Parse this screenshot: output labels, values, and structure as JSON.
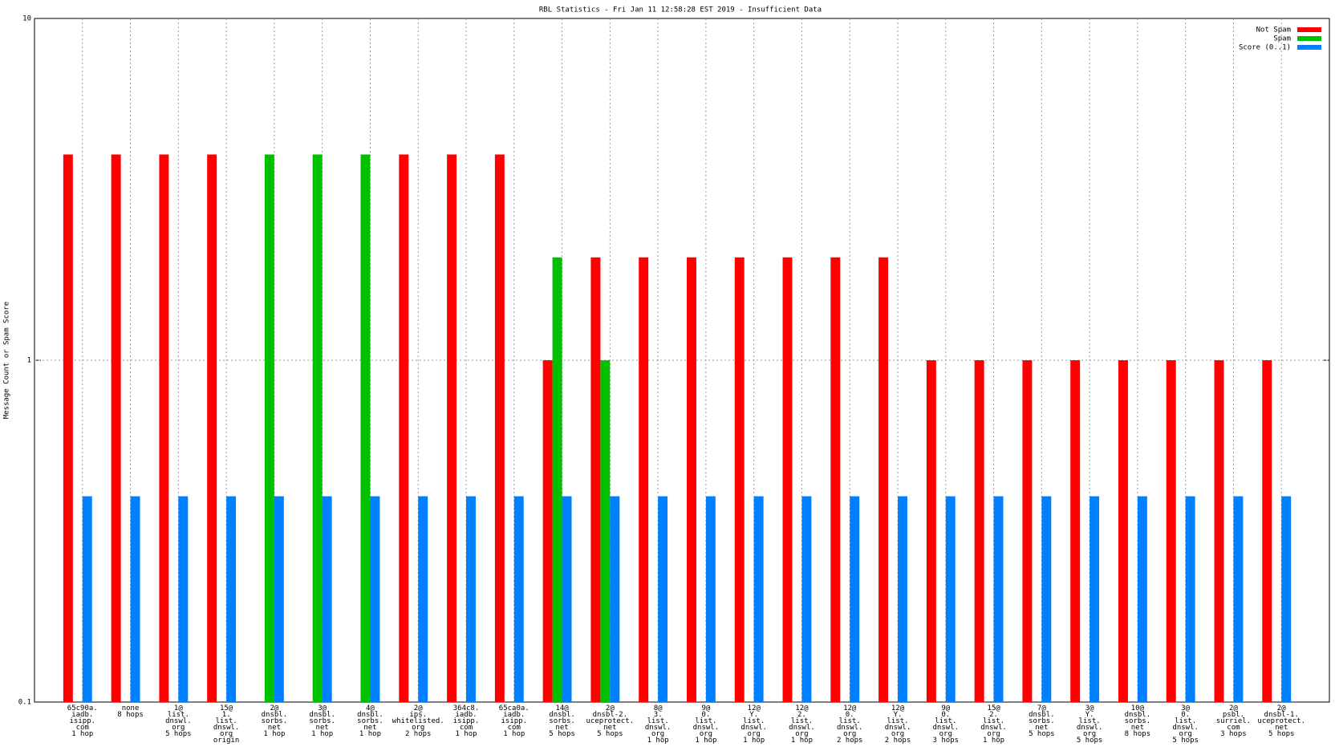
{
  "chart_data": {
    "type": "bar",
    "title": "RBL Statistics - Fri Jan 11 12:58:28 EST 2019 - Insufficient Data",
    "y_label": "Message Count or Spam Score",
    "log_scale_y": true,
    "grid": true,
    "legend_position": "top-right",
    "ylim": [
      0.1,
      10
    ],
    "yticks": [
      10,
      1,
      0.1
    ],
    "categories": [
      [
        "65c90a.",
        "iadb.",
        "isipp.",
        "com",
        "1 hop"
      ],
      [
        "none",
        "8 hops"
      ],
      [
        "1@",
        "list.",
        "dnswl.",
        "org",
        "5 hops"
      ],
      [
        "15@",
        "1.",
        "list.",
        "dnswl.",
        "org",
        "origin"
      ],
      [
        "2@",
        "dnsbl.",
        "sorbs.",
        "net",
        "1 hop"
      ],
      [
        "3@",
        "dnsbl.",
        "sorbs.",
        "net",
        "1 hop"
      ],
      [
        "4@",
        "dnsbl.",
        "sorbs.",
        "net",
        "1 hop"
      ],
      [
        "2@",
        "ips.",
        "whitelisted.",
        "org",
        "2 hops"
      ],
      [
        "364c8.",
        "iadb.",
        "isipp.",
        "com",
        "1 hop"
      ],
      [
        "65ca0a.",
        "iadb.",
        "isipp.",
        "com",
        "1 hop"
      ],
      [
        "14@",
        "dnsbl.",
        "sorbs.",
        "net",
        "5 hops"
      ],
      [
        "2@",
        "dnsbl-2.",
        "uceprotect.",
        "net",
        "5 hops"
      ],
      [
        "8@",
        "3.",
        "list.",
        "dnswl.",
        "org",
        "1 hop"
      ],
      [
        "9@",
        "0.",
        "list.",
        "dnswl.",
        "org",
        "1 hop"
      ],
      [
        "12@",
        "Y.",
        "list.",
        "dnswl.",
        "org",
        "1 hop"
      ],
      [
        "12@",
        "2.",
        "list.",
        "dnswl.",
        "org",
        "1 hop"
      ],
      [
        "12@",
        "0.",
        "list.",
        "dnswl.",
        "org",
        "2 hops"
      ],
      [
        "12@",
        "Y.",
        "list.",
        "dnswl.",
        "org",
        "2 hops"
      ],
      [
        "9@",
        "0.",
        "list.",
        "dnswl.",
        "org",
        "3 hops"
      ],
      [
        "15@",
        "2.",
        "list.",
        "dnswl.",
        "org",
        "1 hop"
      ],
      [
        "7@",
        "dnsbl.",
        "sorbs.",
        "net",
        "5 hops"
      ],
      [
        "3@",
        "Y.",
        "list.",
        "dnswl.",
        "org",
        "5 hops"
      ],
      [
        "10@",
        "dnsbl.",
        "sorbs.",
        "net",
        "8 hops"
      ],
      [
        "3@",
        "0.",
        "list.",
        "dnswl.",
        "org",
        "5 hops"
      ],
      [
        "2@",
        "psbl.",
        "surriel.",
        "com",
        "3 hops"
      ],
      [
        "2@",
        "dnsbl-1.",
        "uceprotect.",
        "net",
        "5 hops"
      ]
    ],
    "series": [
      {
        "name": "Not Spam",
        "color": "#ff0000",
        "values": [
          4,
          4,
          4,
          4,
          null,
          null,
          null,
          4,
          4,
          4,
          1,
          2,
          2,
          2,
          2,
          2,
          2,
          2,
          1,
          1,
          1,
          1,
          1,
          1,
          1,
          1
        ]
      },
      {
        "name": "Spam",
        "color": "#00c000",
        "values": [
          null,
          null,
          null,
          null,
          4,
          4,
          4,
          null,
          null,
          null,
          2,
          1,
          null,
          null,
          null,
          null,
          null,
          null,
          null,
          null,
          null,
          null,
          null,
          null,
          null,
          null
        ]
      },
      {
        "name": "Score (0..1)",
        "color": "#0080ff",
        "values": [
          0.4,
          0.4,
          0.4,
          0.4,
          0.4,
          0.4,
          0.4,
          0.4,
          0.4,
          0.4,
          0.4,
          0.4,
          0.4,
          0.4,
          0.4,
          0.4,
          0.4,
          0.4,
          0.4,
          0.4,
          0.4,
          0.4,
          0.4,
          0.4,
          0.4,
          0.4
        ]
      }
    ]
  }
}
